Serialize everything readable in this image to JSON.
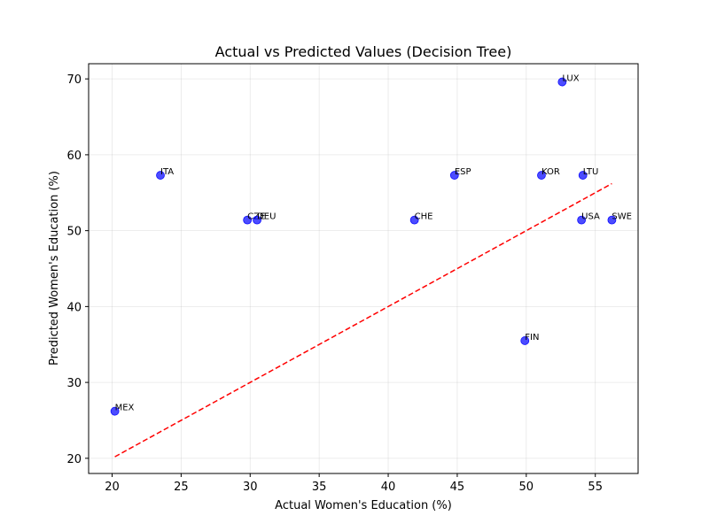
{
  "chart_data": {
    "type": "scatter",
    "title": "Actual vs Predicted Values (Decision Tree)",
    "xlabel": "Actual Women's Education (%)",
    "ylabel": "Predicted Women's Education (%)",
    "xlim": [
      18.3,
      58.1
    ],
    "ylim": [
      18.0,
      72.0
    ],
    "xticks": [
      20,
      25,
      30,
      35,
      40,
      45,
      50,
      55
    ],
    "yticks": [
      20,
      30,
      40,
      50,
      60,
      70
    ],
    "grid": true,
    "point_color": "#0000ff",
    "reference_line": {
      "from": [
        20.2,
        20.2
      ],
      "to": [
        56.2,
        56.2
      ],
      "color": "#ff0000",
      "style": "dashed"
    },
    "points": [
      {
        "label": "MEX",
        "x": 20.2,
        "y": 26.2
      },
      {
        "label": "ITA",
        "x": 23.5,
        "y": 57.3
      },
      {
        "label": "CZE",
        "x": 29.8,
        "y": 51.4
      },
      {
        "label": "DEU",
        "x": 30.5,
        "y": 51.4
      },
      {
        "label": "CHE",
        "x": 41.9,
        "y": 51.4
      },
      {
        "label": "ESP",
        "x": 44.8,
        "y": 57.3
      },
      {
        "label": "FIN",
        "x": 49.9,
        "y": 35.5
      },
      {
        "label": "KOR",
        "x": 51.1,
        "y": 57.3
      },
      {
        "label": "LUX",
        "x": 52.6,
        "y": 69.6
      },
      {
        "label": "USA",
        "x": 54.0,
        "y": 51.4
      },
      {
        "label": "LTU",
        "x": 54.1,
        "y": 57.3
      },
      {
        "label": "SWE",
        "x": 56.2,
        "y": 51.4
      }
    ]
  }
}
